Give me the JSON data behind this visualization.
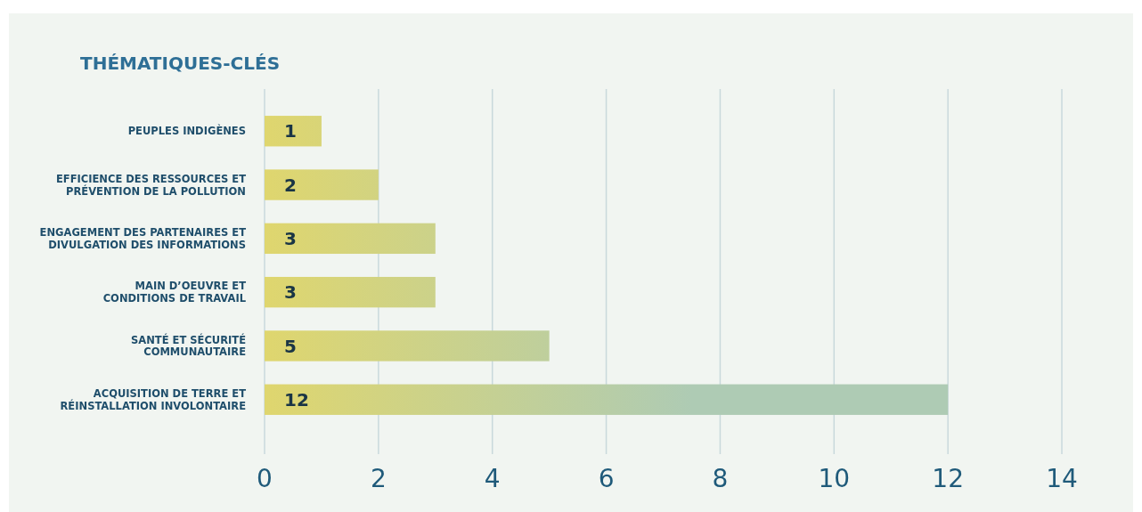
{
  "chart_data": {
    "type": "bar",
    "orientation": "horizontal",
    "title": "THÉMATIQUES-CLÉS",
    "categories": [
      "PEUPLES INDIGÈNES",
      "EFFICIENCE DES RESSOURCES ET PRÉVENTION DE LA POLLUTION",
      "ENGAGEMENT DES PARTENAIRES ET DIVULGATION DES INFORMATIONS",
      "MAIN D’OEUVRE ET CONDITIONS DE TRAVAIL",
      "SANTÉ ET SÉCURITÉ COMMUNAUTAIRE",
      "ACQUISITION DE TERRE ET RÉINSTALLATION INVOLONTAIRE"
    ],
    "values": [
      1,
      2,
      3,
      3,
      5,
      12
    ],
    "color": "#aecbb4",
    "xlim": [
      0,
      14
    ],
    "xticks": [
      0,
      2,
      4,
      6,
      8,
      10,
      12,
      14
    ],
    "grid": "x",
    "data_labels": true
  }
}
